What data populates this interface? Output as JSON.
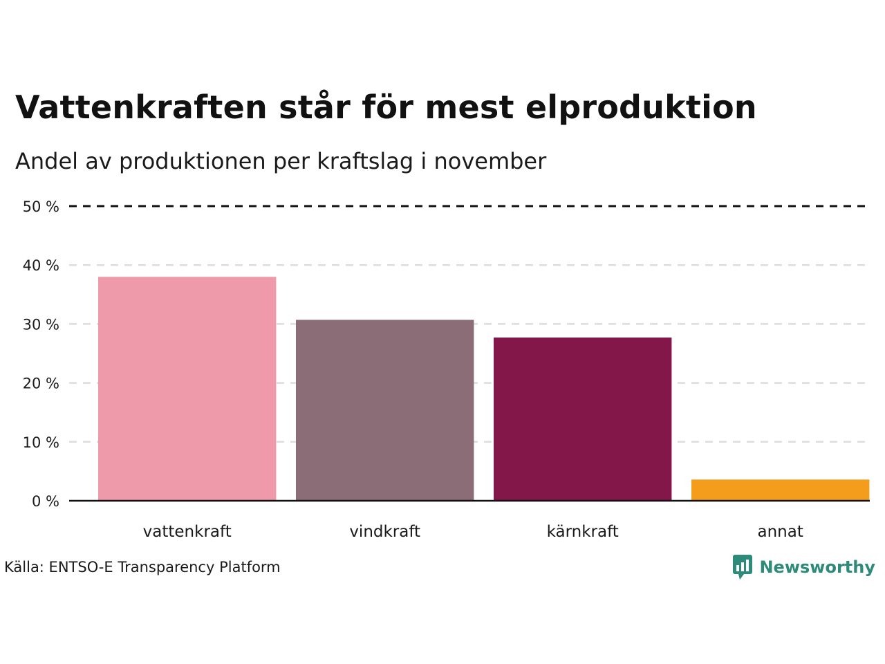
{
  "title": "Vattenkraften står för mest elproduktion",
  "subtitle": "Andel av produktionen per kraftslag i november",
  "source": "Källa: ENTSO-E Transparency Platform",
  "brand": {
    "name": "Newsworthy",
    "icon": "newsworthy-logo-icon",
    "color": "#2e8b7a"
  },
  "chart_data": {
    "type": "bar",
    "title": "Vattenkraften står för mest elproduktion",
    "subtitle": "Andel av produktionen per kraftslag i november",
    "categories": [
      "vattenkraft",
      "vindkraft",
      "kärnkraft",
      "annat"
    ],
    "values": [
      38.0,
      30.7,
      27.7,
      3.6
    ],
    "colors": [
      "#ef9aaa",
      "#8b6d77",
      "#84174a",
      "#f49c1c"
    ],
    "xlabel": "",
    "ylabel": "",
    "ylim": [
      0,
      50
    ],
    "yticks": [
      0,
      10,
      20,
      30,
      40,
      50
    ],
    "ytick_labels": [
      "0 %",
      "10 %",
      "20 %",
      "30 %",
      "40 %",
      "50 %"
    ],
    "grid": true,
    "legend": "none"
  }
}
